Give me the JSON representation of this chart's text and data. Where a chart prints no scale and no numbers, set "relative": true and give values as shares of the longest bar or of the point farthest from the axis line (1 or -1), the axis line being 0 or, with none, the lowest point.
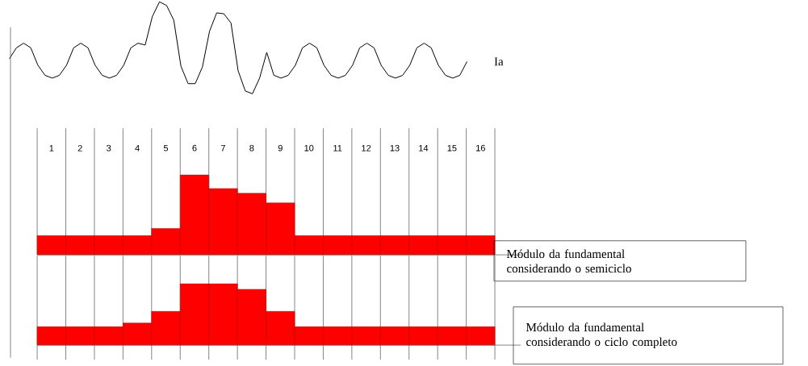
{
  "chart_data": [
    {
      "type": "line",
      "relative": true,
      "tick_labels": false,
      "categories": [
        null,
        null,
        null,
        null,
        null,
        null,
        null,
        null,
        null,
        null,
        null,
        null,
        null,
        null,
        null,
        null,
        null,
        null,
        null,
        null,
        null,
        null,
        null,
        null,
        null,
        null,
        null,
        null,
        null,
        null,
        null,
        null,
        null,
        null,
        null,
        null,
        null,
        null,
        null,
        null,
        null,
        null,
        null,
        null,
        null,
        null,
        null,
        null,
        null,
        null,
        null,
        null,
        null,
        null,
        null,
        null,
        null,
        null,
        null,
        null,
        null,
        null,
        null,
        null,
        null
      ],
      "series": [
        {
          "name": "Ia",
          "color": "#000000",
          "values": [
            0.38,
            0.5,
            0.55,
            0.5,
            0.31,
            0.2,
            0.17,
            0.2,
            0.31,
            0.5,
            0.55,
            0.5,
            0.31,
            0.2,
            0.17,
            0.2,
            0.31,
            0.5,
            0.55,
            0.53,
            0.84,
            1,
            0.96,
            0.8,
            0.3,
            0.11,
            0.11,
            0.29,
            0.68,
            0.88,
            0.87,
            0.77,
            0.25,
            0.03,
            0,
            0.17,
            0.45,
            0.2,
            0.17,
            0.2,
            0.31,
            0.5,
            0.55,
            0.5,
            0.31,
            0.2,
            0.17,
            0.2,
            0.31,
            0.5,
            0.55,
            0.5,
            0.31,
            0.2,
            0.17,
            0.2,
            0.31,
            0.5,
            0.55,
            0.5,
            0.31,
            0.2,
            0.17,
            0.2,
            0.35
          ]
        }
      ]
    },
    {
      "type": "bar",
      "relative": true,
      "grid": "x",
      "tick_labels": "x",
      "categories": [
        "1",
        "2",
        "3",
        "4",
        "5",
        "6",
        "7",
        "8",
        "9",
        "10",
        "11",
        "12",
        "13",
        "14",
        "15",
        "16"
      ],
      "series": [
        {
          "name": "Módulo da fundamental considerando o semiciclo",
          "color": "#ff0000",
          "values": [
            0.24,
            0.24,
            0.24,
            0.24,
            0.33,
            1,
            0.83,
            0.77,
            0.65,
            0.24,
            0.24,
            0.24,
            0.24,
            0.24,
            0.24,
            0.24
          ]
        }
      ]
    },
    {
      "type": "bar",
      "relative": true,
      "grid": "x",
      "tick_labels": false,
      "categories": [
        null,
        null,
        null,
        null,
        null,
        null,
        null,
        null,
        null,
        null,
        null,
        null,
        null,
        null,
        null,
        null
      ],
      "series": [
        {
          "name": "Módulo da fundamental considerando o ciclo completo",
          "color": "#ff0000",
          "values": [
            0.3,
            0.3,
            0.3,
            0.36,
            0.55,
            1,
            1,
            0.91,
            0.55,
            0.3,
            0.3,
            0.3,
            0.3,
            0.3,
            0.3,
            0.3
          ]
        }
      ]
    }
  ]
}
